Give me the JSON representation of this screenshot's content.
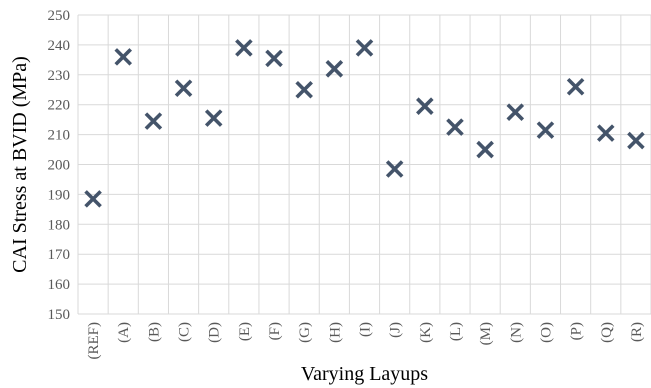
{
  "chart_data": {
    "type": "scatter",
    "title": "",
    "xlabel": "Varying Layups",
    "ylabel": "CAI Stress at BVID (MPa)",
    "ylim": [
      150,
      250
    ],
    "ytick_step": 10,
    "yticks": [
      "150",
      "160",
      "170",
      "180",
      "190",
      "200",
      "210",
      "220",
      "230",
      "240",
      "250"
    ],
    "categories": [
      "(REF)",
      "(A)",
      "(B)",
      "(C)",
      "(D)",
      "(E)",
      "(F)",
      "(G)",
      "(H)",
      "(I)",
      "(J)",
      "(K)",
      "(L)",
      "(M)",
      "(N)",
      "(O)",
      "(P)",
      "(Q)",
      "(R)"
    ],
    "values": [
      188.5,
      236,
      214.5,
      225.5,
      215.5,
      239,
      235.5,
      225,
      232,
      239,
      198.5,
      219.5,
      212.5,
      205,
      217.5,
      211.5,
      226,
      210.5,
      208
    ],
    "grid": true,
    "legend": "none",
    "marker": "x",
    "marker_color": "#44546a"
  }
}
